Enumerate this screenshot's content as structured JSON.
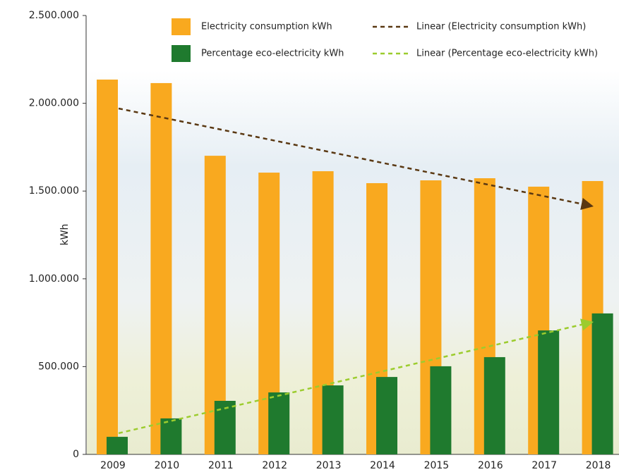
{
  "chart_data": {
    "type": "bar",
    "categories": [
      "2009",
      "2010",
      "2011",
      "2012",
      "2013",
      "2014",
      "2015",
      "2016",
      "2017",
      "2018"
    ],
    "series": [
      {
        "name": "Electricity consumption kWh",
        "color": "#f9a91f",
        "values": [
          2135000,
          2115000,
          1701000,
          1605000,
          1613000,
          1545000,
          1561000,
          1573000,
          1525000,
          1557000
        ]
      },
      {
        "name": "Percentage eco-electricity kWh",
        "color": "#1f7a2e",
        "values": [
          100000,
          205000,
          305000,
          353000,
          393000,
          441000,
          502000,
          554000,
          706000,
          803000
        ]
      }
    ],
    "trendlines": [
      {
        "name": "Linear (Electricity consumption kWh)",
        "color": "#5a3812"
      },
      {
        "name": "Linear (Percentage eco-electricity kWh)",
        "color": "#9ccc2e"
      }
    ],
    "ylabel": "kWh",
    "ylim": [
      0,
      2500000
    ],
    "yticks": [
      0,
      {
        "value": 500000,
        "label": "500.000"
      },
      {
        "value": 1000000,
        "label": "1.000.000"
      },
      {
        "value": 1500000,
        "label": "1.500.000"
      },
      {
        "value": 2000000,
        "label": "2.000.000"
      },
      {
        "value": 2500000,
        "label": "2.500.000"
      }
    ]
  }
}
